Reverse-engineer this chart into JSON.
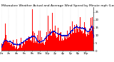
{
  "title": "Milwaukee Weather Actual and Average Wind Speed by Minute mph (Last 24 Hours)",
  "n_points": 1440,
  "ylim": [
    0,
    28
  ],
  "bar_color": "#ff0000",
  "avg_color": "#0000cc",
  "background_color": "#ffffff",
  "grid_color": "#bbbbbb",
  "title_fontsize": 3.2,
  "tick_fontsize": 2.8,
  "seed": 99
}
